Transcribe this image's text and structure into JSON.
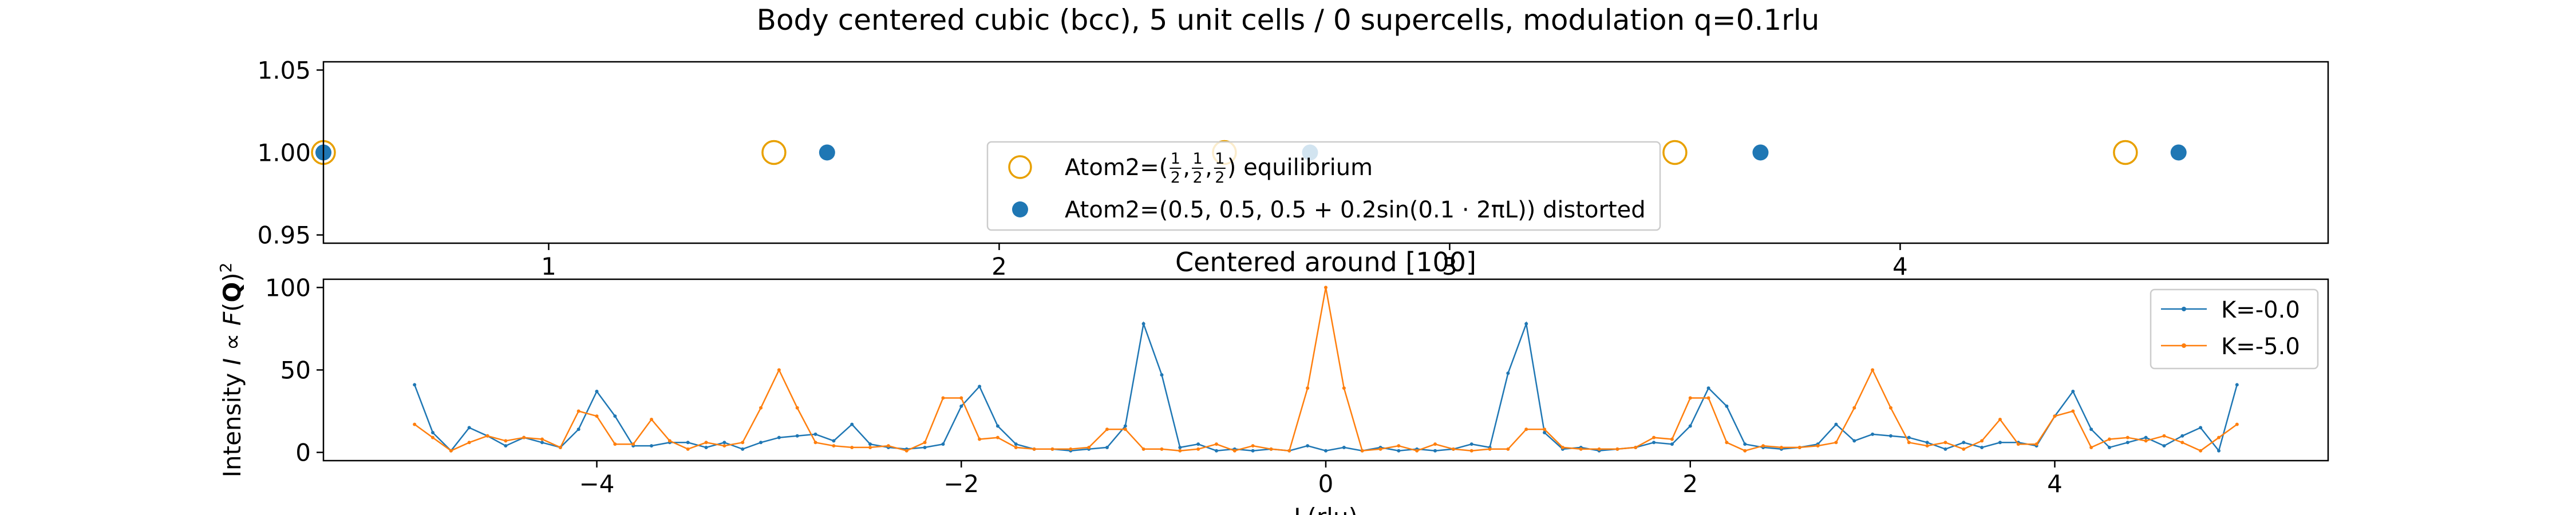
{
  "figure_title": "Body centered cubic (bcc), 5 unit cells / 0 supercells, modulation q=0.1rlu",
  "colors": {
    "blue": "#1f77b4",
    "orange": "#e8a000",
    "orange_line": "#ff7f0e"
  },
  "chart_data": [
    {
      "type": "scatter",
      "title": "",
      "xlabel": "",
      "ylabel": "",
      "xlim": [
        0.5,
        4.95
      ],
      "ylim": [
        0.945,
        1.055
      ],
      "xticks": [
        "1",
        "2",
        "3",
        "4"
      ],
      "xtick_values": [
        1,
        2,
        3,
        4
      ],
      "yticks": [
        "0.95",
        "1.00",
        "1.05"
      ],
      "ytick_values": [
        0.95,
        1.0,
        1.05
      ],
      "legend_position": "center-bottom",
      "series": [
        {
          "name": "Atom2=(1/2, 1/2, 1/2) equilibrium",
          "marker": "open-circle",
          "x": [
            0.5,
            1.5,
            2.5,
            3.5,
            4.5
          ],
          "y": [
            1.0,
            1.0,
            1.0,
            1.0,
            1.0
          ]
        },
        {
          "name": "Atom2=(0.5, 0.5, 0.5 + 0.2sin(0.1 · 2πL)) distorted",
          "marker": "filled-circle",
          "x": [
            0.5,
            1.618,
            2.69,
            3.69,
            4.618
          ],
          "y": [
            1.0,
            1.0,
            1.0,
            1.0,
            1.0
          ]
        }
      ],
      "legend": {
        "eq_prefix": "Atom2=(",
        "eq_suffix": ") equilibrium",
        "half_num": "1",
        "half_den": "2",
        "dist_text": "Atom2=(0.5, 0.5, 0.5 + 0.2sin(0.1 · 2πL)) distorted"
      }
    },
    {
      "type": "line",
      "title": "Centered around [100]",
      "xlabel": "L(rlu)",
      "ylabel": "Intensity I ∝ F(Q)²",
      "ylabel_parts": {
        "a": "Intensity ",
        "b": "I",
        "c": " ∝ ",
        "d": "F",
        "e": "(",
        "f": "Q",
        "g": ")",
        "sup": "2"
      },
      "xlim": [
        -5.5,
        5.5
      ],
      "ylim": [
        -5,
        105
      ],
      "xticks": [
        "−4",
        "−2",
        "0",
        "2",
        "4"
      ],
      "xtick_values": [
        -4,
        -2,
        0,
        2,
        4
      ],
      "yticks": [
        "0",
        "50",
        "100"
      ],
      "ytick_values": [
        0,
        50,
        100
      ],
      "legend_position": "upper-right",
      "x": [
        -5.0,
        -4.9,
        -4.8,
        -4.7,
        -4.6,
        -4.5,
        -4.4,
        -4.3,
        -4.2,
        -4.1,
        -4.0,
        -3.9,
        -3.8,
        -3.7,
        -3.6,
        -3.5,
        -3.4,
        -3.3,
        -3.2,
        -3.1,
        -3.0,
        -2.9,
        -2.8,
        -2.7,
        -2.6,
        -2.5,
        -2.4,
        -2.3,
        -2.2,
        -2.1,
        -2.0,
        -1.9,
        -1.8,
        -1.7,
        -1.6,
        -1.5,
        -1.4,
        -1.3,
        -1.2,
        -1.1,
        -1.0,
        -0.9,
        -0.8,
        -0.7,
        -0.6,
        -0.5,
        -0.4,
        -0.3,
        -0.2,
        -0.1,
        0.0,
        0.1,
        0.2,
        0.3,
        0.4,
        0.5,
        0.6,
        0.7,
        0.8,
        0.9,
        1.0,
        1.1,
        1.2,
        1.3,
        1.4,
        1.5,
        1.6,
        1.7,
        1.8,
        1.9,
        2.0,
        2.1,
        2.2,
        2.3,
        2.4,
        2.5,
        2.6,
        2.7,
        2.8,
        2.9,
        3.0,
        3.1,
        3.2,
        3.3,
        3.4,
        3.5,
        3.6,
        3.7,
        3.8,
        3.9,
        4.0,
        4.1,
        4.2,
        4.3,
        4.4,
        4.5,
        4.6,
        4.7,
        4.8,
        4.9,
        5.0
      ],
      "series": [
        {
          "name": "K=-0.0",
          "values": [
            41,
            12,
            1,
            15,
            10,
            4,
            9,
            6,
            3,
            14,
            37,
            22,
            4,
            4,
            6,
            6,
            3,
            6,
            2,
            6,
            9,
            10,
            11,
            7,
            17,
            5,
            3,
            2,
            3,
            5,
            28,
            40,
            16,
            5,
            2,
            2,
            1,
            2,
            3,
            16,
            78,
            47,
            3,
            5,
            1,
            2,
            1,
            2,
            1,
            4,
            1,
            3,
            1,
            3,
            1,
            2,
            1,
            2,
            5,
            3,
            48,
            78,
            12,
            2,
            3,
            1,
            2,
            3,
            6,
            5,
            16,
            39,
            28,
            5,
            3,
            2,
            3,
            5,
            17,
            7,
            11,
            10,
            9,
            6,
            2,
            6,
            3,
            6,
            6,
            4,
            22,
            37,
            14,
            3,
            6,
            9,
            4,
            10,
            15,
            1,
            41
          ]
        },
        {
          "name": "K=-5.0",
          "values": [
            17,
            9,
            1,
            6,
            10,
            7,
            9,
            8,
            3,
            25,
            22,
            5,
            5,
            20,
            7,
            2,
            6,
            4,
            6,
            27,
            50,
            27,
            6,
            4,
            3,
            3,
            4,
            1,
            6,
            33,
            33,
            8,
            9,
            3,
            2,
            2,
            2,
            3,
            14,
            14,
            2,
            2,
            1,
            2,
            5,
            1,
            4,
            2,
            1,
            39,
            100,
            39,
            1,
            2,
            4,
            1,
            5,
            2,
            1,
            2,
            2,
            14,
            14,
            3,
            2,
            2,
            2,
            3,
            9,
            8,
            33,
            33,
            6,
            1,
            4,
            3,
            3,
            4,
            6,
            27,
            50,
            27,
            6,
            4,
            6,
            2,
            7,
            20,
            5,
            5,
            22,
            25,
            3,
            8,
            9,
            7,
            10,
            6,
            1,
            9,
            17
          ]
        }
      ]
    }
  ]
}
